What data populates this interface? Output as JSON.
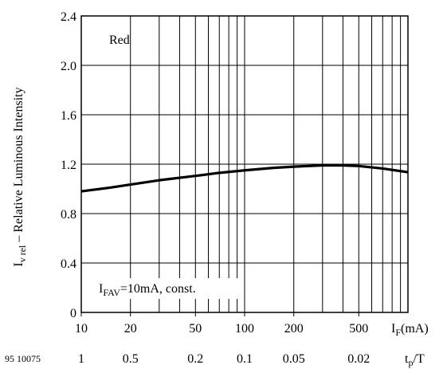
{
  "chart_data": {
    "type": "line",
    "x_scale": "log",
    "y_scale": "linear",
    "xlim": [
      10,
      1000
    ],
    "ylim": [
      0,
      2.4
    ],
    "yticks": [
      "0",
      "0.4",
      "0.8",
      "1.2",
      "1.6",
      "2.0",
      "2.4"
    ],
    "xticks": [
      {
        "value": 10,
        "label": "10"
      },
      {
        "value": 20,
        "label": "20"
      },
      {
        "value": 50,
        "label": "50"
      },
      {
        "value": 100,
        "label": "100"
      },
      {
        "value": 200,
        "label": "200"
      },
      {
        "value": 500,
        "label": "500"
      }
    ],
    "x_minor_ticks": [
      30,
      40,
      60,
      70,
      80,
      90,
      300,
      400,
      600,
      700,
      800,
      900
    ],
    "secondary_x_ticks": [
      {
        "value": 10,
        "label": "1"
      },
      {
        "value": 20,
        "label": "0.5"
      },
      {
        "value": 50,
        "label": "0.2"
      },
      {
        "value": 100,
        "label": "0.1"
      },
      {
        "value": 200,
        "label": "0.05"
      },
      {
        "value": 500,
        "label": "0.02"
      }
    ],
    "ylabel": {
      "main": "I",
      "sub": "v rel",
      "rest": "  – Relative Luminous Intensity"
    },
    "xlabel": {
      "main": "I",
      "sub": "F",
      "rest": "(mA)"
    },
    "secondary_xlabel": {
      "main": "t",
      "sub": "p",
      "rest": "/T"
    },
    "series_label": "Red",
    "annotation": {
      "main": "I",
      "sub": "FAV",
      "rest": "=10mA, const."
    },
    "figure_number": "95 10075",
    "grid": true,
    "series": [
      {
        "x": [
          10,
          15,
          20,
          30,
          50,
          70,
          100,
          150,
          200,
          300,
          400,
          500,
          700,
          1000
        ],
        "y": [
          0.98,
          1.01,
          1.035,
          1.07,
          1.105,
          1.13,
          1.15,
          1.17,
          1.18,
          1.19,
          1.19,
          1.185,
          1.165,
          1.135
        ]
      }
    ]
  }
}
